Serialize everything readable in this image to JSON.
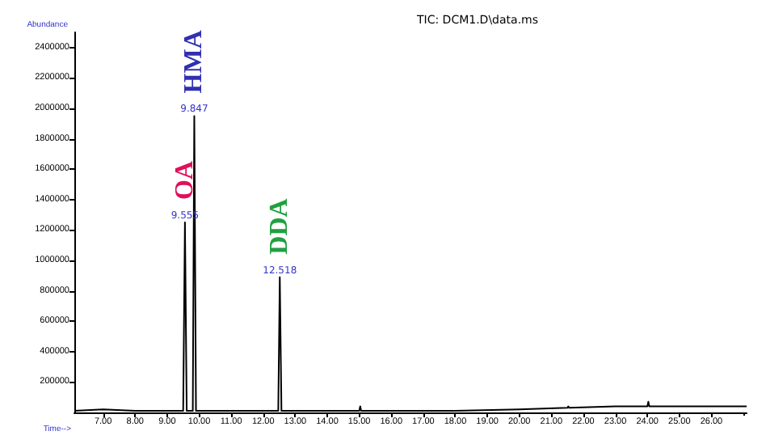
{
  "chart_data": {
    "type": "line",
    "title": "TIC: DCM1.D\\data.ms",
    "xlabel": "Time-->",
    "ylabel": "Abundance",
    "x": [
      6.1,
      7.0,
      8.0,
      9.0,
      9.5,
      9.555,
      9.61,
      9.8,
      9.847,
      9.9,
      12.47,
      12.518,
      12.57,
      15.0,
      15.03,
      15.06,
      18,
      20,
      21.5,
      21.53,
      21.56,
      23,
      24.0,
      24.03,
      24.06,
      25,
      27.1
    ],
    "series": [
      {
        "color": "#000000",
        "values": [
          10000,
          20000,
          10000,
          10000,
          10000,
          1250000,
          10000,
          10000,
          1950000,
          10000,
          10000,
          890000,
          10000,
          10000,
          40000,
          10000,
          10000,
          20000,
          30000,
          40000,
          30000,
          40000,
          40000,
          70000,
          40000,
          40000,
          40000
        ]
      }
    ],
    "xlim": [
      6.1,
      27.1
    ],
    "xticks": [
      {
        "value": 7,
        "label": "7.00"
      },
      {
        "value": 8,
        "label": "8.00"
      },
      {
        "value": 9,
        "label": "9.00"
      },
      {
        "value": 10,
        "label": "10.00"
      },
      {
        "value": 11,
        "label": "11.00"
      },
      {
        "value": 12,
        "label": "12.00"
      },
      {
        "value": 13,
        "label": "13.00"
      },
      {
        "value": 14,
        "label": "14.00"
      },
      {
        "value": 15,
        "label": "15.00"
      },
      {
        "value": 16,
        "label": "16.00"
      },
      {
        "value": 17,
        "label": "17.00"
      },
      {
        "value": 18,
        "label": "18.00"
      },
      {
        "value": 19,
        "label": "19.00"
      },
      {
        "value": 20,
        "label": "20.00"
      },
      {
        "value": 21,
        "label": "21.00"
      },
      {
        "value": 22,
        "label": "22.00"
      },
      {
        "value": 23,
        "label": "23.00"
      },
      {
        "value": 24,
        "label": "24.00"
      },
      {
        "value": 25,
        "label": "25.00"
      },
      {
        "value": 26,
        "label": "26.00"
      }
    ],
    "ylim": [
      0,
      2500000
    ],
    "yticks": [
      200000,
      400000,
      600000,
      800000,
      1000000,
      1200000,
      1400000,
      1600000,
      1800000,
      2000000,
      2200000,
      2400000
    ],
    "annotations": [
      {
        "text": "OA",
        "x": 9.555,
        "y": 1250000
      },
      {
        "text": "HMA",
        "x": 9.847,
        "y": 1950000
      },
      {
        "text": "DDA",
        "x": 12.518,
        "y": 890000
      },
      {
        "text": "9.555",
        "x": 9.555,
        "y": 1250000
      },
      {
        "text": "9.847",
        "x": 9.847,
        "y": 1950000
      },
      {
        "text": "12.518",
        "x": 12.518,
        "y": 890000
      }
    ],
    "grid": false,
    "line_style": "solid"
  }
}
